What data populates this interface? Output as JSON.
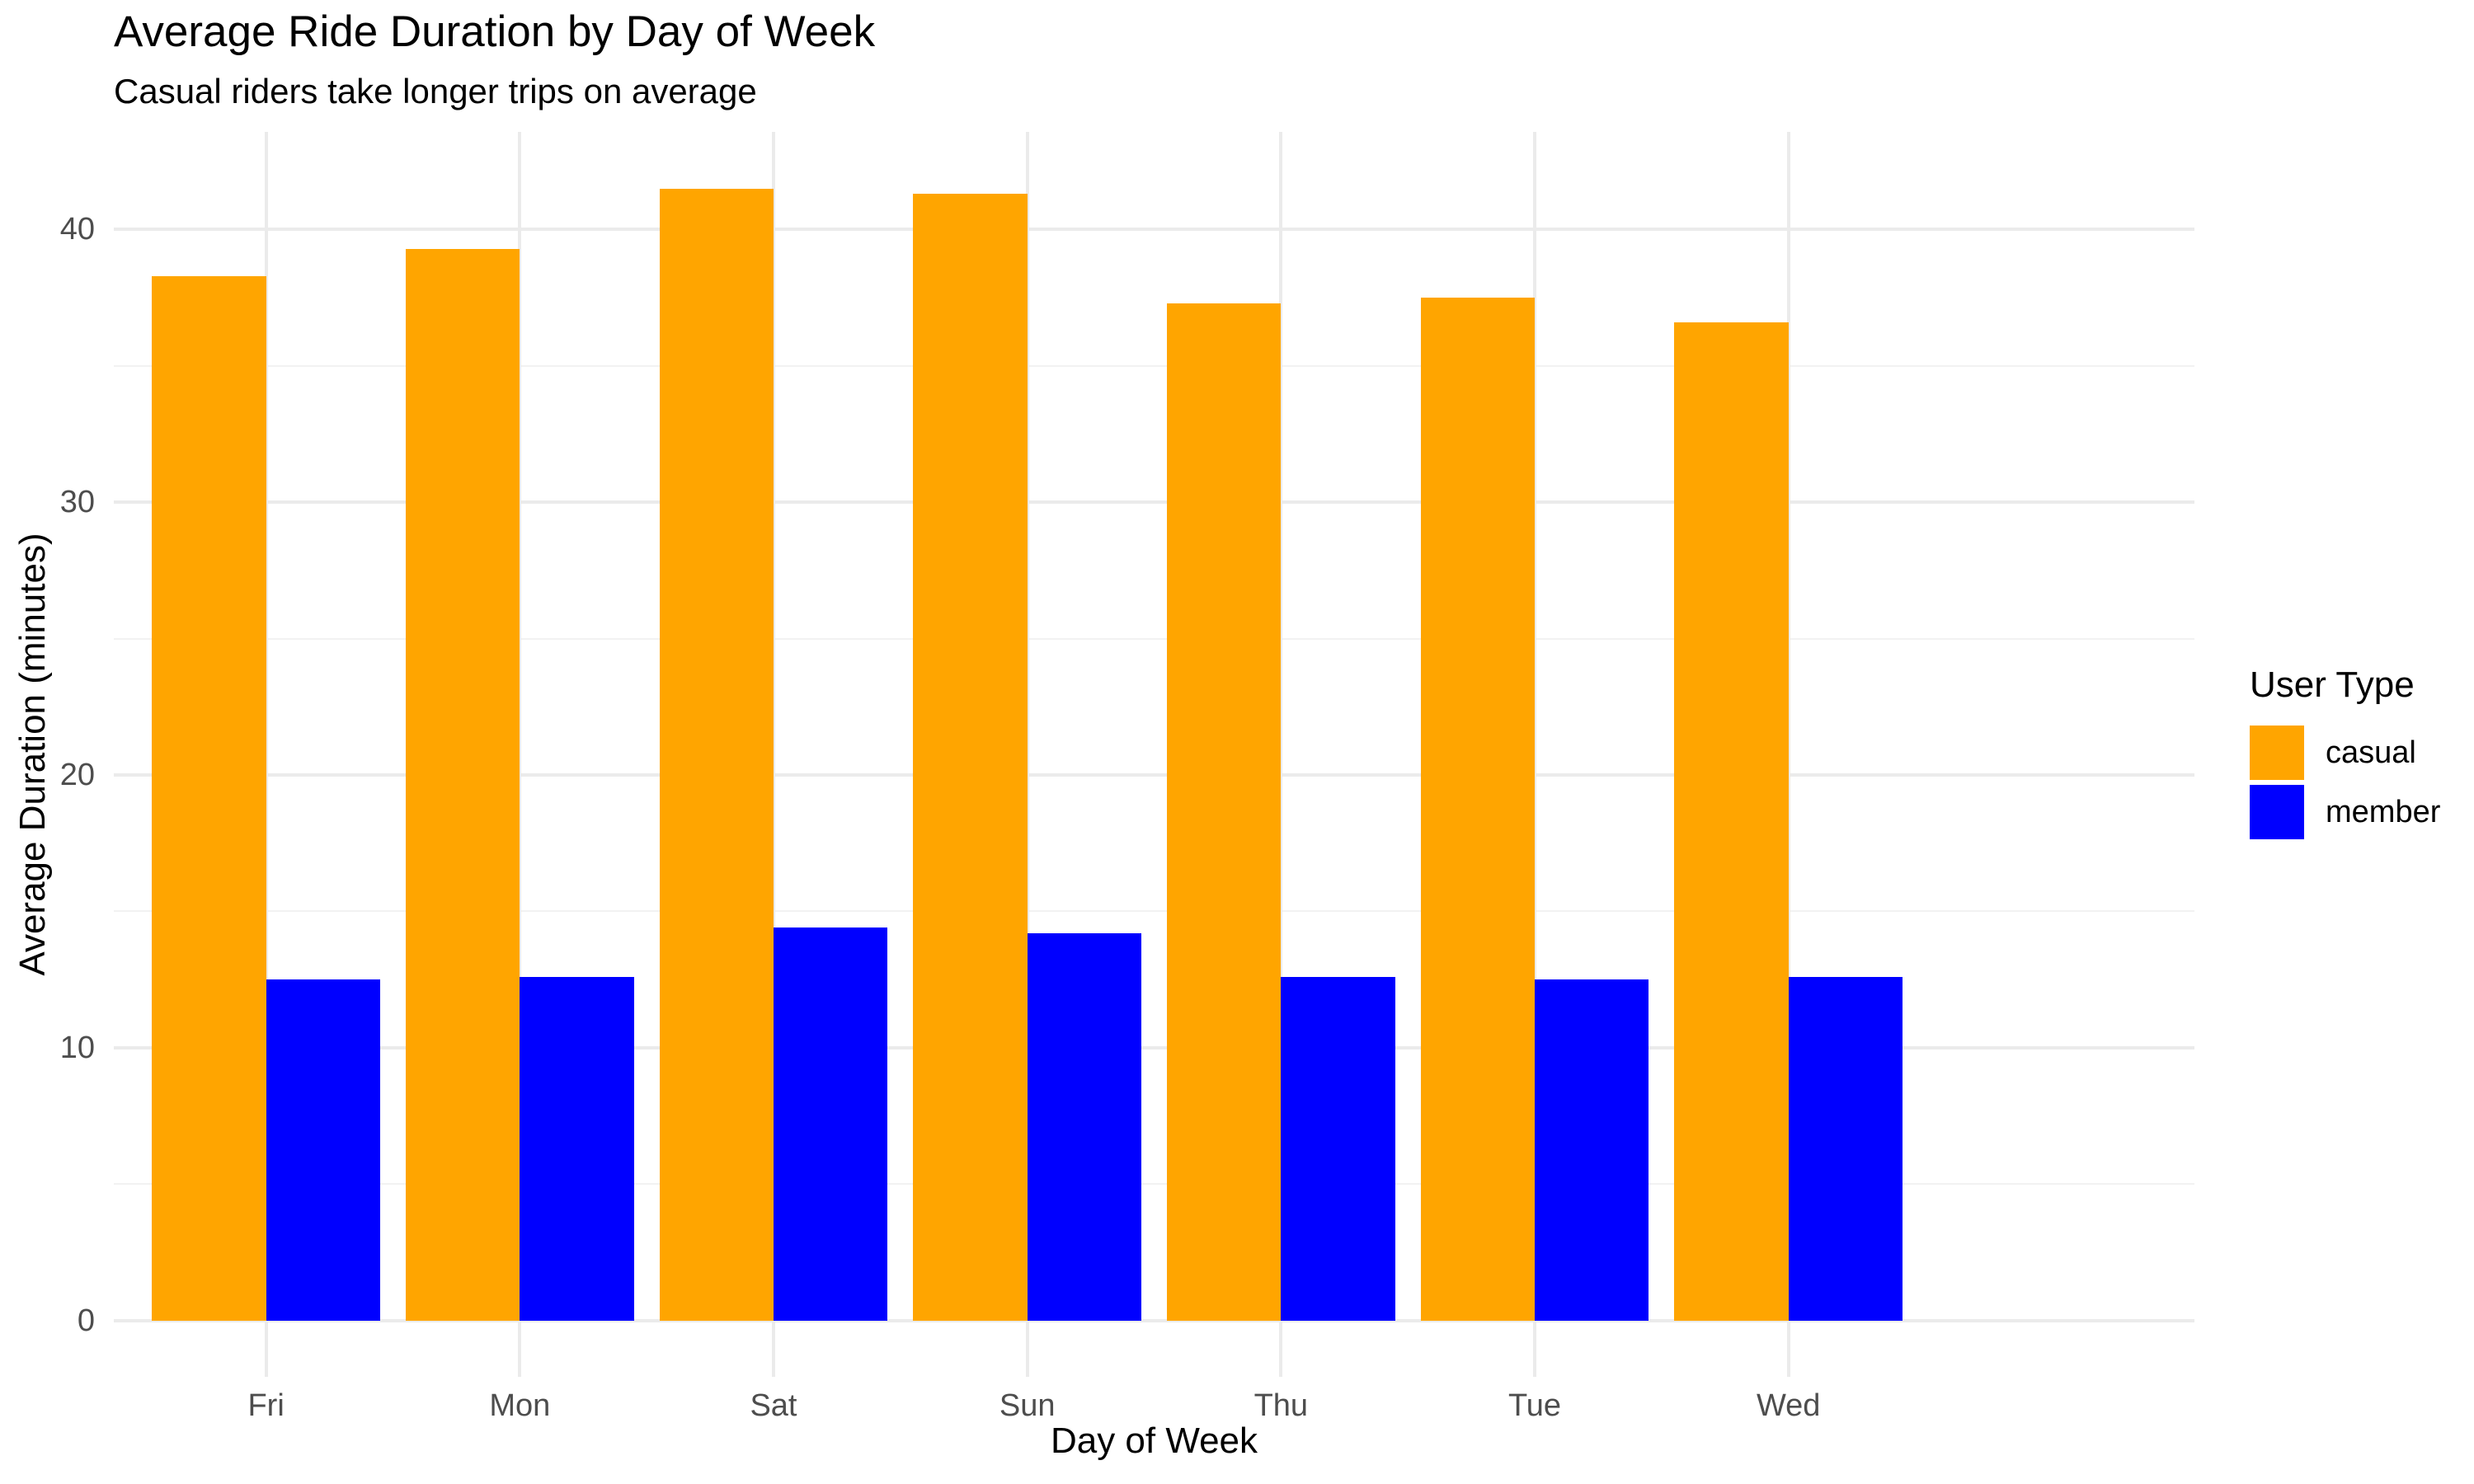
{
  "title": "Average Ride Duration by Day of Week",
  "subtitle": "Casual riders take longer trips on average",
  "colors": {
    "casual": "#FFA500",
    "member": "#0000FF",
    "grid_major": "#EBEBEB",
    "grid_minor": "#F2F2F2",
    "axis_text": "#4D4D4D",
    "title_text": "#000000",
    "background": "#FFFFFF"
  },
  "chart_data": {
    "type": "bar",
    "grouped": true,
    "title": "Average Ride Duration by Day of Week",
    "subtitle": "Casual riders take longer trips on average",
    "xlabel": "Day of Week",
    "ylabel": "Average Duration (minutes)",
    "categories": [
      "Fri",
      "Mon",
      "Sat",
      "Sun",
      "Thu",
      "Tue",
      "Wed"
    ],
    "series": [
      {
        "name": "casual",
        "color": "#FFA500",
        "values": [
          38.3,
          39.3,
          41.5,
          41.3,
          37.3,
          37.5,
          36.6
        ]
      },
      {
        "name": "member",
        "color": "#0000FF",
        "values": [
          12.5,
          12.6,
          14.4,
          14.2,
          12.6,
          12.5,
          12.6
        ]
      }
    ],
    "y_ticks": [
      0,
      10,
      20,
      30,
      40
    ],
    "y_minor_ticks": [
      5,
      15,
      25,
      35
    ],
    "ylim": [
      0,
      43.6
    ],
    "grid": true,
    "legend": {
      "title": "User Type",
      "position": "right",
      "entries": [
        "casual",
        "member"
      ]
    }
  }
}
